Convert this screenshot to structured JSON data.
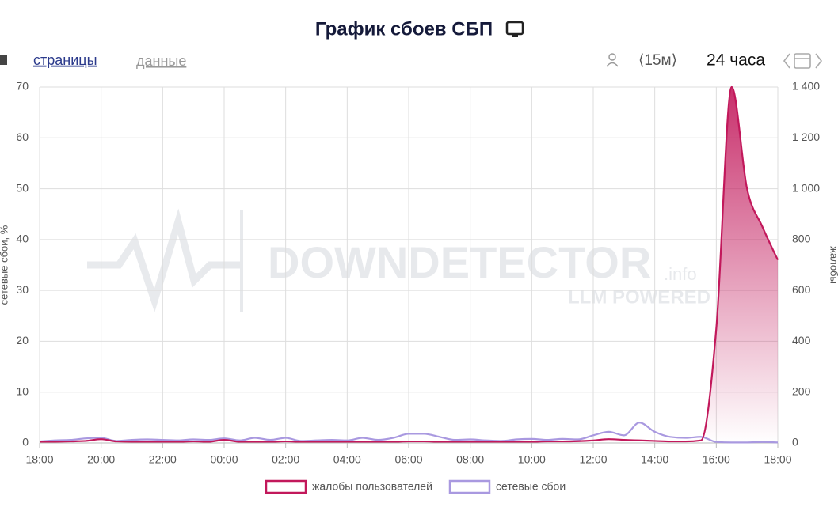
{
  "chart_data": {
    "type": "line",
    "title": "График сбоев СБП",
    "y_label": "сетевые сбои, %",
    "y2_label": "жалобы",
    "x": [
      "18:00",
      "18:30",
      "19:00",
      "19:30",
      "20:00",
      "20:30",
      "21:00",
      "21:30",
      "22:00",
      "22:30",
      "23:00",
      "23:30",
      "00:00",
      "00:30",
      "01:00",
      "01:30",
      "02:00",
      "02:30",
      "03:00",
      "03:30",
      "04:00",
      "04:30",
      "05:00",
      "05:30",
      "06:00",
      "06:30",
      "07:00",
      "07:30",
      "08:00",
      "08:30",
      "09:00",
      "09:30",
      "10:00",
      "10:30",
      "11:00",
      "11:30",
      "12:00",
      "12:30",
      "13:00",
      "13:30",
      "14:00",
      "14:30",
      "15:00",
      "15:30",
      "16:00",
      "16:30",
      "17:00",
      "17:30",
      "18:00"
    ],
    "series": [
      {
        "name": "жалобы пользователей",
        "color": "#c2185b",
        "axis": "y2",
        "fill": true,
        "values": [
          5,
          5,
          6,
          8,
          15,
          6,
          5,
          5,
          5,
          5,
          6,
          5,
          12,
          5,
          5,
          5,
          6,
          5,
          5,
          5,
          5,
          5,
          5,
          5,
          6,
          6,
          5,
          5,
          5,
          5,
          5,
          5,
          5,
          6,
          6,
          7,
          10,
          15,
          12,
          10,
          8,
          6,
          6,
          10,
          450,
          1400,
          1000,
          850,
          720
        ]
      },
      {
        "name": "сетевые сбои",
        "color": "#a999e0",
        "values": [
          0.3,
          0.5,
          0.6,
          0.9,
          1.0,
          0.4,
          0.6,
          0.7,
          0.6,
          0.5,
          0.7,
          0.6,
          0.9,
          0.5,
          1.0,
          0.6,
          1.0,
          0.4,
          0.5,
          0.6,
          0.5,
          1.0,
          0.6,
          1.0,
          1.8,
          1.8,
          1.2,
          0.6,
          0.7,
          0.5,
          0.4,
          0.7,
          0.8,
          0.6,
          0.8,
          0.7,
          1.5,
          2.2,
          1.5,
          4.0,
          2.2,
          1.2,
          1.0,
          1.2,
          0.2,
          0.1,
          0.1,
          0.2,
          0.1
        ]
      }
    ],
    "ylim": [
      0,
      70
    ],
    "yticks": [
      0,
      10,
      20,
      30,
      40,
      50,
      60,
      70
    ],
    "y2lim": [
      0,
      1400
    ],
    "y2ticks": [
      0,
      200,
      400,
      600,
      800,
      {
        "value": 1000,
        "label": "1 000"
      },
      {
        "value": 1200,
        "label": "1 200"
      },
      {
        "value": 1400,
        "label": "1 400"
      }
    ],
    "grid": true,
    "legend": "bottom"
  },
  "toolbar": {
    "tabs": [
      "страницы",
      "данные"
    ],
    "interval": "⟨15м⟩",
    "range": "24 часа"
  },
  "watermark": {
    "brand": "DOWNDETECTOR",
    "suffix": ".info",
    "tagline": "LLM POWERED"
  }
}
